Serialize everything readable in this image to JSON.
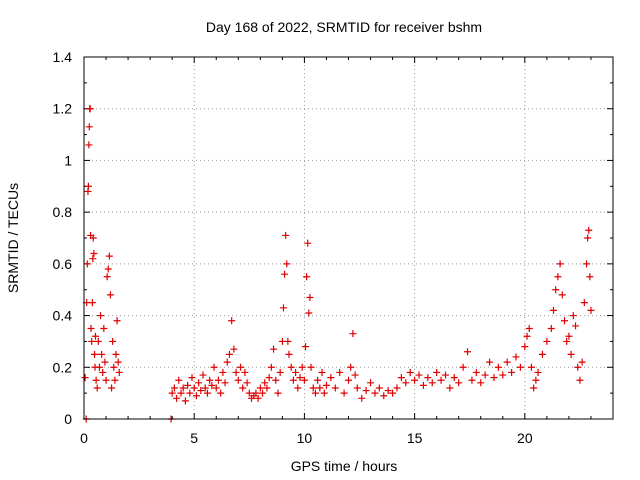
{
  "chart_data": {
    "type": "scatter",
    "title": "Day 168 of 2022, SRMTID for receiver bshm",
    "xlabel": "GPS time / hours",
    "ylabel": "SRMTID / TECUs",
    "xlim": [
      0,
      24
    ],
    "ylim": [
      0,
      1.4
    ],
    "xticks": [
      0,
      5,
      10,
      15,
      20
    ],
    "yticks": [
      0,
      0.2,
      0.4,
      0.6,
      0.8,
      1.0,
      1.2,
      1.4
    ],
    "ytick_labels": [
      "0",
      "0.2",
      "0.4",
      "0.6",
      "0.8",
      "1",
      "1.2",
      "1.4"
    ],
    "grid": true,
    "marker": "+",
    "color": "#e00000",
    "series": [
      {
        "name": "SRMTID",
        "points": [
          [
            0.05,
            0.16
          ],
          [
            0.1,
            0.0
          ],
          [
            0.12,
            0.45
          ],
          [
            0.15,
            0.6
          ],
          [
            0.18,
            0.88
          ],
          [
            0.2,
            0.9
          ],
          [
            0.22,
            1.06
          ],
          [
            0.24,
            1.13
          ],
          [
            0.26,
            1.2
          ],
          [
            0.28,
            1.2
          ],
          [
            0.3,
            0.71
          ],
          [
            0.32,
            0.35
          ],
          [
            0.35,
            0.3
          ],
          [
            0.38,
            0.45
          ],
          [
            0.4,
            0.62
          ],
          [
            0.42,
            0.7
          ],
          [
            0.45,
            0.64
          ],
          [
            0.48,
            0.25
          ],
          [
            0.5,
            0.2
          ],
          [
            0.52,
            0.32
          ],
          [
            0.55,
            0.15
          ],
          [
            0.6,
            0.12
          ],
          [
            0.65,
            0.3
          ],
          [
            0.7,
            0.2
          ],
          [
            0.75,
            0.4
          ],
          [
            0.8,
            0.25
          ],
          [
            0.85,
            0.18
          ],
          [
            0.9,
            0.35
          ],
          [
            0.95,
            0.22
          ],
          [
            1.0,
            0.15
          ],
          [
            1.05,
            0.55
          ],
          [
            1.1,
            0.58
          ],
          [
            1.15,
            0.63
          ],
          [
            1.2,
            0.48
          ],
          [
            1.25,
            0.12
          ],
          [
            1.3,
            0.3
          ],
          [
            1.35,
            0.2
          ],
          [
            1.4,
            0.15
          ],
          [
            1.45,
            0.25
          ],
          [
            1.5,
            0.38
          ],
          [
            1.55,
            0.22
          ],
          [
            1.6,
            0.18
          ],
          [
            3.95,
            0.0
          ],
          [
            4.0,
            0.1
          ],
          [
            4.1,
            0.12
          ],
          [
            4.2,
            0.08
          ],
          [
            4.3,
            0.15
          ],
          [
            4.4,
            0.1
          ],
          [
            4.5,
            0.12
          ],
          [
            4.6,
            0.07
          ],
          [
            4.7,
            0.13
          ],
          [
            4.8,
            0.1
          ],
          [
            4.9,
            0.16
          ],
          [
            5.0,
            0.12
          ],
          [
            5.1,
            0.09
          ],
          [
            5.2,
            0.14
          ],
          [
            5.3,
            0.11
          ],
          [
            5.4,
            0.17
          ],
          [
            5.5,
            0.12
          ],
          [
            5.6,
            0.1
          ],
          [
            5.7,
            0.15
          ],
          [
            5.8,
            0.13
          ],
          [
            5.9,
            0.2
          ],
          [
            6.0,
            0.12
          ],
          [
            6.1,
            0.15
          ],
          [
            6.2,
            0.1
          ],
          [
            6.3,
            0.18
          ],
          [
            6.4,
            0.14
          ],
          [
            6.5,
            0.22
          ],
          [
            6.6,
            0.25
          ],
          [
            6.7,
            0.38
          ],
          [
            6.8,
            0.27
          ],
          [
            6.9,
            0.18
          ],
          [
            7.0,
            0.15
          ],
          [
            7.1,
            0.2
          ],
          [
            7.2,
            0.12
          ],
          [
            7.3,
            0.18
          ],
          [
            7.4,
            0.14
          ],
          [
            7.5,
            0.1
          ],
          [
            7.6,
            0.08
          ],
          [
            7.7,
            0.09
          ],
          [
            7.8,
            0.1
          ],
          [
            7.9,
            0.08
          ],
          [
            8.0,
            0.12
          ],
          [
            8.1,
            0.1
          ],
          [
            8.2,
            0.14
          ],
          [
            8.3,
            0.12
          ],
          [
            8.4,
            0.16
          ],
          [
            8.5,
            0.2
          ],
          [
            8.6,
            0.27
          ],
          [
            8.7,
            0.15
          ],
          [
            8.8,
            0.1
          ],
          [
            8.9,
            0.18
          ],
          [
            9.0,
            0.3
          ],
          [
            9.05,
            0.43
          ],
          [
            9.1,
            0.56
          ],
          [
            9.15,
            0.71
          ],
          [
            9.2,
            0.6
          ],
          [
            9.25,
            0.3
          ],
          [
            9.3,
            0.25
          ],
          [
            9.4,
            0.2
          ],
          [
            9.5,
            0.15
          ],
          [
            9.6,
            0.18
          ],
          [
            9.7,
            0.12
          ],
          [
            9.8,
            0.16
          ],
          [
            9.9,
            0.2
          ],
          [
            10.0,
            0.15
          ],
          [
            10.05,
            0.28
          ],
          [
            10.1,
            0.55
          ],
          [
            10.15,
            0.68
          ],
          [
            10.2,
            0.41
          ],
          [
            10.25,
            0.47
          ],
          [
            10.3,
            0.2
          ],
          [
            10.4,
            0.12
          ],
          [
            10.5,
            0.1
          ],
          [
            10.6,
            0.15
          ],
          [
            10.7,
            0.12
          ],
          [
            10.8,
            0.18
          ],
          [
            10.9,
            0.1
          ],
          [
            11.0,
            0.13
          ],
          [
            11.2,
            0.16
          ],
          [
            11.4,
            0.12
          ],
          [
            11.6,
            0.18
          ],
          [
            11.8,
            0.1
          ],
          [
            12.0,
            0.15
          ],
          [
            12.1,
            0.2
          ],
          [
            12.2,
            0.33
          ],
          [
            12.3,
            0.17
          ],
          [
            12.4,
            0.12
          ],
          [
            12.6,
            0.08
          ],
          [
            12.8,
            0.11
          ],
          [
            13.0,
            0.14
          ],
          [
            13.2,
            0.1
          ],
          [
            13.4,
            0.12
          ],
          [
            13.6,
            0.09
          ],
          [
            13.8,
            0.11
          ],
          [
            14.0,
            0.1
          ],
          [
            14.2,
            0.12
          ],
          [
            14.4,
            0.16
          ],
          [
            14.6,
            0.14
          ],
          [
            14.8,
            0.18
          ],
          [
            15.0,
            0.15
          ],
          [
            15.2,
            0.17
          ],
          [
            15.4,
            0.13
          ],
          [
            15.6,
            0.16
          ],
          [
            15.8,
            0.14
          ],
          [
            16.0,
            0.18
          ],
          [
            16.2,
            0.15
          ],
          [
            16.4,
            0.17
          ],
          [
            16.6,
            0.12
          ],
          [
            16.8,
            0.16
          ],
          [
            17.0,
            0.14
          ],
          [
            17.2,
            0.2
          ],
          [
            17.4,
            0.26
          ],
          [
            17.6,
            0.15
          ],
          [
            17.8,
            0.18
          ],
          [
            18.0,
            0.14
          ],
          [
            18.2,
            0.17
          ],
          [
            18.4,
            0.22
          ],
          [
            18.6,
            0.16
          ],
          [
            18.8,
            0.2
          ],
          [
            19.0,
            0.17
          ],
          [
            19.2,
            0.22
          ],
          [
            19.4,
            0.18
          ],
          [
            19.6,
            0.24
          ],
          [
            19.8,
            0.2
          ],
          [
            20.0,
            0.28
          ],
          [
            20.1,
            0.32
          ],
          [
            20.2,
            0.35
          ],
          [
            20.3,
            0.2
          ],
          [
            20.4,
            0.12
          ],
          [
            20.5,
            0.15
          ],
          [
            20.6,
            0.18
          ],
          [
            20.8,
            0.25
          ],
          [
            21.0,
            0.3
          ],
          [
            21.2,
            0.35
          ],
          [
            21.3,
            0.42
          ],
          [
            21.4,
            0.5
          ],
          [
            21.5,
            0.55
          ],
          [
            21.6,
            0.6
          ],
          [
            21.7,
            0.48
          ],
          [
            21.8,
            0.38
          ],
          [
            21.9,
            0.3
          ],
          [
            22.0,
            0.32
          ],
          [
            22.1,
            0.25
          ],
          [
            22.2,
            0.4
          ],
          [
            22.3,
            0.36
          ],
          [
            22.4,
            0.2
          ],
          [
            22.5,
            0.15
          ],
          [
            22.6,
            0.22
          ],
          [
            22.7,
            0.45
          ],
          [
            22.8,
            0.6
          ],
          [
            22.85,
            0.7
          ],
          [
            22.9,
            0.73
          ],
          [
            22.95,
            0.55
          ],
          [
            23.0,
            0.42
          ]
        ]
      }
    ]
  }
}
